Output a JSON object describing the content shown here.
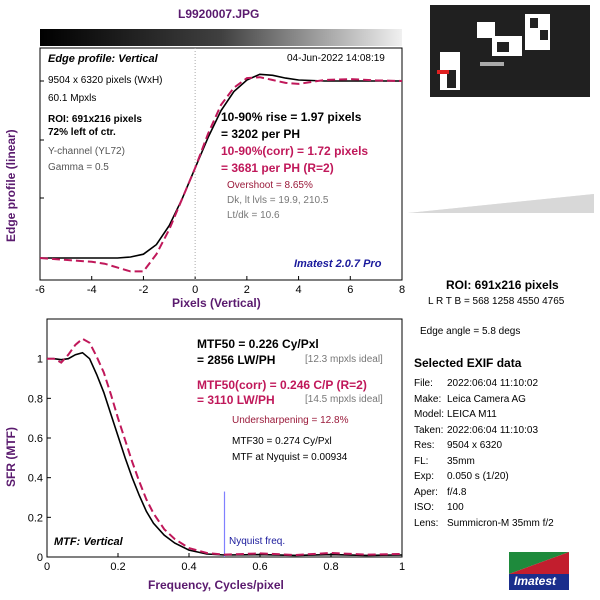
{
  "filename": "L9920007.JPG",
  "colors": {
    "title": "#5a1a6e",
    "corr": "#c0185a",
    "label_blue": "#1a1a9c",
    "nyquist_line": "#8080ff"
  },
  "edge_panel": {
    "title": "Edge profile: Vertical",
    "timestamp": "04-Jun-2022 14:08:19",
    "info": [
      "9504 x 6320 pixels (WxH)",
      "60.1 Mpxls"
    ],
    "roi_lines": [
      "ROI: 691x216 pixels",
      "72% left of ctr."
    ],
    "channel": "Y-channel  (YL72)",
    "gamma": "Gamma = 0.5",
    "rise_1": "10-90% rise = 1.97 pixels",
    "rise_2": "= 3202 per PH",
    "corr_1": "10-90%(corr) = 1.72 pixels",
    "corr_2": "= 3681 per PH  (R=2)",
    "overshoot": "Overshoot = 8.65%",
    "dk": "Dk, lt lvls = 19.9, 210.5",
    "ltdk": "Lt/dk = 10.6",
    "version": "Imatest 2.0.7 Pro",
    "ylabel": "Edge profile (linear)",
    "xlabel": "Pixels (Vertical)"
  },
  "mtf_panel": {
    "title": "MTF: Vertical",
    "mtf50_1": "MTF50 = 0.226 Cy/Pxl",
    "mtf50_2": "= 2856 LW/PH",
    "ideal_1": "[12.3 mpxls ideal]",
    "corr_1": "MTF50(corr) = 0.246 C/P  (R=2)",
    "corr_2": "= 3110 LW/PH",
    "ideal_2": "[14.5 mpxls ideal]",
    "undersharp": "Undersharpening = 12.8%",
    "mtf30": "MTF30 = 0.274 Cy/Pxl",
    "mtf_nyq": "MTF at Nyquist = 0.00934",
    "nyquist_label": "Nyquist freq.",
    "ylabel": "SFR (MTF)",
    "xlabel": "Frequency, Cycles/pixel"
  },
  "roi_summary": {
    "title": "ROI: 691x216 pixels",
    "lrtb": "L R  T B = 568 1258  4550 4765",
    "edge_angle": "Edge angle = 5.8 degs"
  },
  "exif": {
    "title": "Selected EXIF data",
    "rows": [
      {
        "k": "File:",
        "v": "2022:06:04 11:10:02"
      },
      {
        "k": "Make:",
        "v": "Leica Camera AG"
      },
      {
        "k": "Model:",
        "v": "LEICA M11"
      },
      {
        "k": "Taken:",
        "v": "2022:06:04 11:10:03"
      },
      {
        "k": "Res:",
        "v": "9504 x 6320"
      },
      {
        "k": "FL:",
        "v": "35mm"
      },
      {
        "k": "Exp:",
        "v": "0.050 s  (1/20)"
      },
      {
        "k": "Aper:",
        "v": "f/4.8"
      },
      {
        "k": "ISO:",
        "v": "100"
      },
      {
        "k": "Lens:",
        "v": "Summicron-M 35mm f/2"
      }
    ]
  },
  "logo_text": "Imatest",
  "chart_data": [
    {
      "type": "line",
      "xlabel": "Pixels (Vertical)",
      "ylabel": "Edge profile (linear)",
      "xlim": [
        -6,
        8
      ],
      "xticks": [
        -6,
        -4,
        -2,
        0,
        2,
        4,
        6,
        8
      ],
      "series": [
        {
          "x": [
            -6,
            -5,
            -4,
            -3,
            -2.5,
            -2,
            -1.5,
            -1,
            -0.5,
            0,
            0.5,
            1,
            1.5,
            2,
            2.5,
            3,
            3.5,
            4,
            5,
            6,
            7,
            8
          ],
          "y": [
            0.03,
            0.03,
            0.03,
            0.03,
            0.035,
            0.05,
            0.1,
            0.2,
            0.34,
            0.5,
            0.66,
            0.8,
            0.9,
            0.96,
            0.99,
            0.985,
            0.97,
            0.96,
            0.955,
            0.955,
            0.955,
            0.955
          ]
        },
        {
          "x": [
            -6,
            -5,
            -4,
            -3.5,
            -3,
            -2.5,
            -2,
            -1.5,
            -1,
            -0.5,
            0,
            0.5,
            1,
            1.5,
            2,
            2.5,
            3,
            3.5,
            4,
            5,
            6,
            7,
            8
          ],
          "y": [
            0.03,
            0.02,
            0.01,
            0.0,
            -0.02,
            -0.04,
            -0.04,
            0.05,
            0.18,
            0.34,
            0.5,
            0.68,
            0.83,
            0.92,
            0.97,
            0.975,
            0.96,
            0.945,
            0.94,
            0.96,
            0.965,
            0.958,
            0.955
          ]
        }
      ]
    },
    {
      "type": "line",
      "xlabel": "Frequency, Cycles/pixel",
      "ylabel": "SFR (MTF)",
      "xlim": [
        0,
        1
      ],
      "ylim": [
        0,
        1.2
      ],
      "xticks": [
        0,
        0.2,
        0.4,
        0.6,
        0.8,
        1
      ],
      "yticks": [
        0,
        0.2,
        0.4,
        0.6,
        0.8,
        1
      ],
      "nyquist": 0.5,
      "series": [
        {
          "x": [
            0,
            0.02,
            0.04,
            0.06,
            0.08,
            0.1,
            0.12,
            0.14,
            0.16,
            0.18,
            0.2,
            0.22,
            0.24,
            0.26,
            0.28,
            0.3,
            0.33,
            0.36,
            0.4,
            0.45,
            0.5,
            0.6,
            0.7,
            0.8,
            0.9,
            1
          ],
          "y": [
            1,
            1,
            0.995,
            1.0,
            1.02,
            1.03,
            1.0,
            0.92,
            0.83,
            0.72,
            0.61,
            0.5,
            0.4,
            0.31,
            0.23,
            0.17,
            0.11,
            0.07,
            0.035,
            0.015,
            0.01,
            0.012,
            0.008,
            0.012,
            0.008,
            0.01
          ]
        },
        {
          "x": [
            0,
            0.02,
            0.04,
            0.06,
            0.08,
            0.1,
            0.12,
            0.14,
            0.16,
            0.18,
            0.2,
            0.22,
            0.24,
            0.26,
            0.28,
            0.3,
            0.33,
            0.36,
            0.4,
            0.45,
            0.5,
            0.6,
            0.7,
            0.8,
            0.9,
            1
          ],
          "y": [
            1,
            1,
            0.98,
            1.02,
            1.07,
            1.1,
            1.08,
            1.01,
            0.93,
            0.82,
            0.7,
            0.59,
            0.48,
            0.38,
            0.29,
            0.22,
            0.14,
            0.09,
            0.045,
            0.02,
            0.012,
            0.018,
            0.01,
            0.02,
            0.012,
            0.015
          ]
        }
      ]
    }
  ]
}
